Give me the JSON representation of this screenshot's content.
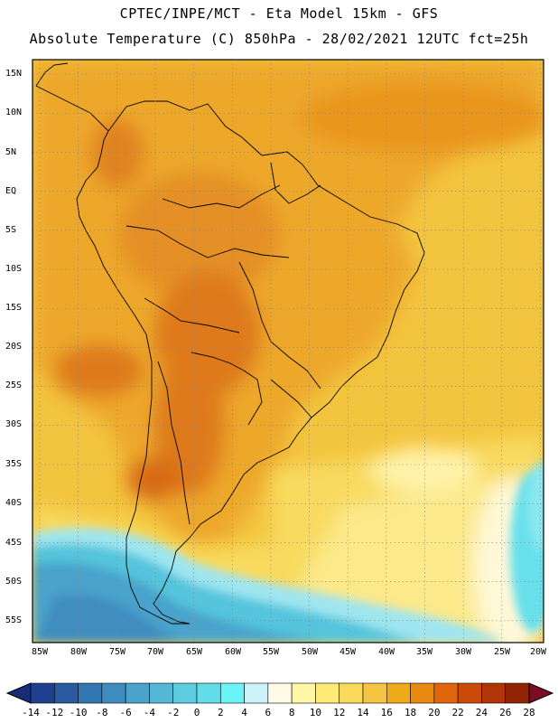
{
  "header": {
    "line1": "CPTEC/INPE/MCT -  Eta Model 15km - GFS",
    "line2": "Absolute Temperature (C) 850hPa - 28/02/2021 12UTC fct=25h"
  },
  "map": {
    "lat_labels": [
      "15N",
      "10N",
      "5N",
      "EQ",
      "5S",
      "10S",
      "15S",
      "20S",
      "25S",
      "30S",
      "35S",
      "40S",
      "45S",
      "50S",
      "55S"
    ],
    "lon_labels": [
      "85W",
      "80W",
      "75W",
      "70W",
      "65W",
      "60W",
      "55W",
      "50W",
      "45W",
      "40W",
      "35W",
      "30W",
      "25W",
      "20W"
    ]
  },
  "colorbar": {
    "labels": [
      "-14",
      "-12",
      "-10",
      "-8",
      "-6",
      "-4",
      "-2",
      "0",
      "2",
      "4",
      "6",
      "8",
      "10",
      "12",
      "14",
      "16",
      "18",
      "20",
      "22",
      "24",
      "26",
      "28"
    ],
    "colors": [
      "#1f3f8f",
      "#2a5aa0",
      "#3377b5",
      "#3f8dc0",
      "#4aa3cb",
      "#55b8d6",
      "#5fcbe0",
      "#63dcea",
      "#6af4f8",
      "#cdf3fa",
      "#fffbe6",
      "#fff7a8",
      "#ffe977",
      "#f9d95c",
      "#f5c443",
      "#efaa1a",
      "#e98a12",
      "#e0650c",
      "#cc4a08",
      "#b23508",
      "#922406"
    ],
    "low_color": "#1a2c78",
    "high_color": "#7a0d22"
  }
}
